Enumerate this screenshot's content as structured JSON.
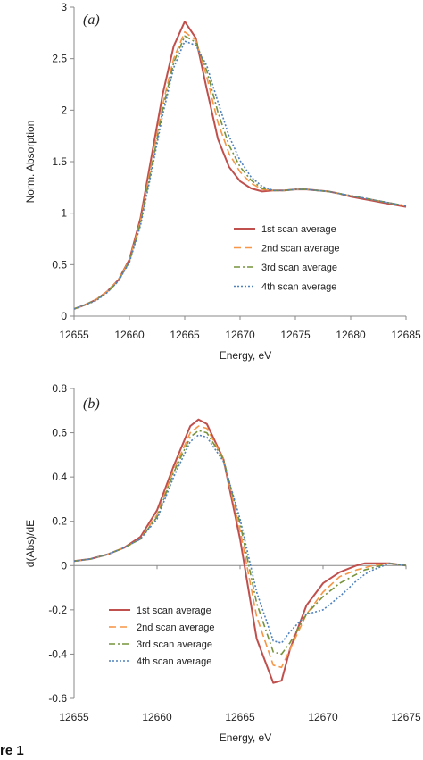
{
  "caption": "re 1",
  "colors": {
    "s1": "#c0504d",
    "s2": "#f79646",
    "s3": "#77933c",
    "s4": "#4f81bd"
  },
  "chart_data": [
    {
      "type": "line",
      "panel_label": "(a)",
      "xlabel": "Energy, eV",
      "ylabel": "Norm. Absorption",
      "xlim": [
        12655,
        12685
      ],
      "ylim": [
        0,
        3
      ],
      "xticks": [
        "12655",
        "12660",
        "12665",
        "12670",
        "12675",
        "12680",
        "12685"
      ],
      "yticks": [
        "0",
        "0.5",
        "1",
        "1.5",
        "2",
        "2.5",
        "3"
      ],
      "grid": false,
      "legend_position": "center-right",
      "x": [
        12655,
        12656,
        12657,
        12658,
        12659,
        12660,
        12661,
        12662,
        12663,
        12664,
        12665,
        12666,
        12667,
        12668,
        12669,
        12670,
        12671,
        12672,
        12673,
        12674,
        12675,
        12676,
        12677,
        12678,
        12679,
        12680,
        12681,
        12682,
        12683,
        12684,
        12685
      ],
      "series": [
        {
          "name": "1st scan average",
          "style": "solid",
          "values": [
            0.07,
            0.11,
            0.16,
            0.24,
            0.35,
            0.55,
            0.95,
            1.55,
            2.15,
            2.62,
            2.86,
            2.7,
            2.2,
            1.72,
            1.45,
            1.31,
            1.24,
            1.21,
            1.22,
            1.22,
            1.23,
            1.23,
            1.22,
            1.21,
            1.19,
            1.16,
            1.14,
            1.12,
            1.1,
            1.08,
            1.06
          ]
        },
        {
          "name": "2nd scan average",
          "style": "dashed",
          "values": [
            0.07,
            0.11,
            0.16,
            0.24,
            0.35,
            0.54,
            0.92,
            1.48,
            2.05,
            2.5,
            2.76,
            2.68,
            2.32,
            1.88,
            1.58,
            1.4,
            1.29,
            1.23,
            1.22,
            1.22,
            1.23,
            1.23,
            1.22,
            1.21,
            1.19,
            1.17,
            1.15,
            1.13,
            1.11,
            1.09,
            1.07
          ]
        },
        {
          "name": "3rd scan average",
          "style": "dashdot",
          "values": [
            0.07,
            0.11,
            0.16,
            0.23,
            0.34,
            0.53,
            0.9,
            1.44,
            2.0,
            2.46,
            2.72,
            2.66,
            2.38,
            1.98,
            1.66,
            1.45,
            1.32,
            1.24,
            1.22,
            1.22,
            1.23,
            1.23,
            1.22,
            1.21,
            1.19,
            1.17,
            1.15,
            1.13,
            1.11,
            1.09,
            1.07
          ]
        },
        {
          "name": "4th scan average",
          "style": "dotted",
          "values": [
            0.07,
            0.11,
            0.15,
            0.23,
            0.34,
            0.52,
            0.88,
            1.4,
            1.95,
            2.41,
            2.67,
            2.63,
            2.43,
            2.08,
            1.75,
            1.51,
            1.35,
            1.26,
            1.22,
            1.22,
            1.23,
            1.23,
            1.22,
            1.21,
            1.19,
            1.17,
            1.15,
            1.13,
            1.11,
            1.09,
            1.07
          ]
        }
      ]
    },
    {
      "type": "line",
      "panel_label": "(b)",
      "xlabel": "Energy, eV",
      "ylabel": "d(Abs)/dE",
      "xlim": [
        12655,
        12675
      ],
      "ylim": [
        -0.6,
        0.8
      ],
      "xticks": [
        "12655",
        "12660",
        "12665",
        "12670",
        "12675"
      ],
      "yticks": [
        "-0.6",
        "-0.4",
        "-0.2",
        "0",
        "0.2",
        "0.4",
        "0.6",
        "0.8"
      ],
      "grid": false,
      "legend_position": "bottom-left",
      "x": [
        12655,
        12656,
        12657,
        12658,
        12659,
        12660,
        12661,
        12662,
        12662.5,
        12663,
        12664,
        12665,
        12666,
        12667,
        12667.5,
        12668,
        12669,
        12670,
        12671,
        12672,
        12672.5,
        12673,
        12674,
        12675
      ],
      "series": [
        {
          "name": "1st scan average",
          "style": "solid",
          "values": [
            0.02,
            0.03,
            0.05,
            0.08,
            0.13,
            0.25,
            0.45,
            0.63,
            0.66,
            0.64,
            0.48,
            0.12,
            -0.33,
            -0.53,
            -0.52,
            -0.38,
            -0.18,
            -0.08,
            -0.03,
            0.0,
            0.01,
            0.01,
            0.01,
            0.0
          ]
        },
        {
          "name": "2nd scan average",
          "style": "dashed",
          "values": [
            0.02,
            0.03,
            0.05,
            0.08,
            0.12,
            0.23,
            0.43,
            0.6,
            0.63,
            0.62,
            0.48,
            0.16,
            -0.23,
            -0.45,
            -0.46,
            -0.38,
            -0.22,
            -0.12,
            -0.05,
            -0.02,
            -0.01,
            0.0,
            0.01,
            0.0
          ]
        },
        {
          "name": "3rd scan average",
          "style": "dashdot",
          "values": [
            0.02,
            0.03,
            0.05,
            0.08,
            0.12,
            0.22,
            0.42,
            0.58,
            0.61,
            0.6,
            0.48,
            0.19,
            -0.17,
            -0.39,
            -0.4,
            -0.35,
            -0.22,
            -0.14,
            -0.08,
            -0.04,
            -0.02,
            -0.01,
            0.01,
            0.0
          ]
        },
        {
          "name": "4th scan average",
          "style": "dotted",
          "values": [
            0.02,
            0.03,
            0.05,
            0.08,
            0.12,
            0.21,
            0.4,
            0.56,
            0.59,
            0.58,
            0.47,
            0.21,
            -0.12,
            -0.34,
            -0.35,
            -0.3,
            -0.22,
            -0.2,
            -0.14,
            -0.07,
            -0.04,
            -0.02,
            0.01,
            0.0
          ]
        }
      ]
    }
  ]
}
